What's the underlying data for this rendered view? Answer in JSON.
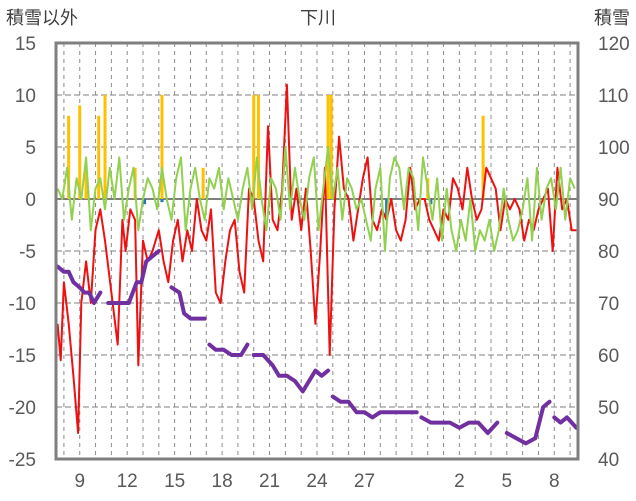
{
  "chart_data": {
    "type": "line",
    "title": "下川",
    "ylabel_left": "積雪以外",
    "ylabel_right": "積雪",
    "left_ylim": [
      -25,
      15
    ],
    "left_yticks": [
      "15",
      "10",
      "5",
      "0",
      "-5",
      "-10",
      "-15",
      "-20",
      "-25"
    ],
    "right_ylim": [
      40,
      120
    ],
    "right_yticks": [
      "120",
      "110",
      "100",
      "90",
      "80",
      "70",
      "60",
      "50",
      "40"
    ],
    "x_ticks": [
      "9",
      "12",
      "15",
      "18",
      "21",
      "24",
      "27",
      "2",
      "5",
      "8"
    ],
    "x_tick_days": [
      9,
      12,
      15,
      18,
      21,
      24,
      27,
      33,
      36,
      39
    ],
    "xlim_days": [
      7.5,
      40.5
    ],
    "grid": true,
    "colors": {
      "temperature": "#ee1111",
      "temp_variation": "#92d050",
      "precip": "#ffc000",
      "precip_negative": "#2e75b6",
      "snow_depth": "#7030a0",
      "frame": "#7f7f7f"
    },
    "series": [
      {
        "axis": "left",
        "kind": "line",
        "color_key": "temperature",
        "x": [
          7.6,
          7.8,
          8.0,
          8.3,
          8.6,
          8.9,
          9.1,
          9.4,
          9.7,
          10.0,
          10.3,
          10.6,
          11.0,
          11.4,
          11.7,
          11.9,
          12.2,
          12.5,
          12.7,
          13.0,
          13.3,
          13.6,
          14.0,
          14.3,
          14.6,
          14.9,
          15.2,
          15.5,
          15.8,
          16.1,
          16.4,
          16.7,
          17.0,
          17.3,
          17.6,
          17.9,
          18.2,
          18.5,
          18.8,
          19.1,
          19.4,
          19.7,
          20.0,
          20.3,
          20.6,
          20.9,
          21.2,
          21.5,
          21.8,
          22.1,
          22.4,
          22.7,
          23.0,
          23.3,
          23.6,
          23.9,
          24.2,
          24.5,
          24.8,
          25.1,
          25.4,
          25.7,
          26.0,
          26.3,
          26.6,
          26.9,
          27.2,
          27.5,
          27.8,
          28.1,
          28.4,
          28.7,
          29.0,
          29.3,
          29.6,
          29.9,
          30.2,
          30.5,
          30.8,
          31.1,
          31.4,
          31.7,
          32.0,
          32.3,
          32.6,
          32.9,
          33.2,
          33.5,
          33.8,
          34.1,
          34.4,
          34.7,
          35.0,
          35.3,
          35.6,
          35.9,
          36.2,
          36.5,
          36.8,
          37.1,
          37.4,
          37.7,
          38.0,
          38.3,
          38.6,
          38.9,
          39.2,
          39.5,
          39.8,
          40.1,
          40.4
        ],
        "y": [
          -12,
          -15.5,
          -8,
          -12,
          -17,
          -22.5,
          -10,
          -6,
          -10,
          -3,
          -1,
          -4,
          -9,
          -14,
          -2,
          -5,
          -1,
          -2,
          -16,
          -4,
          -6,
          -5,
          -3,
          -6,
          -8,
          -4,
          -2,
          -6,
          -3,
          -5,
          0,
          -3,
          -4,
          -1,
          -9,
          -10,
          -6,
          -3,
          -2,
          -7,
          -9,
          1,
          0,
          -4,
          -6,
          7,
          -2,
          -3,
          1,
          11,
          -2,
          1,
          -3,
          1,
          -5,
          -12,
          -5,
          3,
          -15,
          -1,
          6,
          1,
          0,
          -4,
          -1,
          2,
          4,
          -2,
          -3,
          -1,
          -2,
          0,
          -3,
          -4,
          -2,
          3,
          -1,
          0,
          0,
          -2,
          -3,
          -4,
          -1,
          -2,
          2,
          1,
          -1,
          3,
          0,
          -2,
          -1,
          3,
          2,
          1,
          -3,
          0,
          -1,
          0,
          -1,
          -4,
          -2,
          -3,
          -1,
          0,
          1,
          -5,
          3,
          -1,
          0,
          -3,
          -3
        ]
      },
      {
        "axis": "left",
        "kind": "line",
        "color_key": "temp_variation",
        "x": [
          7.6,
          7.9,
          8.2,
          8.5,
          8.8,
          9.1,
          9.4,
          9.7,
          10.0,
          10.3,
          10.6,
          10.9,
          11.2,
          11.5,
          11.8,
          12.1,
          12.4,
          12.7,
          13.0,
          13.3,
          13.6,
          13.9,
          14.2,
          14.5,
          14.8,
          15.1,
          15.4,
          15.7,
          16.0,
          16.3,
          16.6,
          16.9,
          17.2,
          17.5,
          17.8,
          18.1,
          18.4,
          18.7,
          19.0,
          19.3,
          19.6,
          19.9,
          20.2,
          20.5,
          20.8,
          21.1,
          21.4,
          21.7,
          22.0,
          22.3,
          22.6,
          22.9,
          23.2,
          23.5,
          23.8,
          24.1,
          24.4,
          24.7,
          25.0,
          25.3,
          25.6,
          25.9,
          26.2,
          26.5,
          26.8,
          27.1,
          27.4,
          27.7,
          28.0,
          28.3,
          28.6,
          28.9,
          29.2,
          29.5,
          29.8,
          30.1,
          30.4,
          30.7,
          31.0,
          31.3,
          31.6,
          31.9,
          32.2,
          32.5,
          32.8,
          33.1,
          33.4,
          33.7,
          34.0,
          34.3,
          34.6,
          34.9,
          35.2,
          35.5,
          35.8,
          36.1,
          36.4,
          36.7,
          37.0,
          37.3,
          37.6,
          37.9,
          38.2,
          38.5,
          38.8,
          39.1,
          39.4,
          39.7,
          40.0,
          40.3
        ],
        "y": [
          1,
          0,
          3,
          -2,
          2,
          0,
          4,
          -3,
          1,
          2,
          -1,
          3,
          0,
          4,
          -2,
          1,
          3,
          -3,
          0,
          2,
          1,
          -1,
          3,
          0,
          -2,
          2,
          4,
          -3,
          1,
          3,
          0,
          -2,
          2,
          1,
          3,
          -1,
          2,
          0,
          -2,
          1,
          3,
          -1,
          4,
          0,
          -3,
          2,
          1,
          -2,
          5,
          -1,
          3,
          0,
          -2,
          2,
          4,
          -3,
          1,
          5,
          0,
          3,
          -2,
          2,
          1,
          -1,
          0,
          -2,
          -4,
          1,
          3,
          -5,
          2,
          4,
          3,
          -1,
          3,
          2,
          -3,
          4,
          1,
          -2,
          2,
          -4,
          1,
          -3,
          -5,
          -2,
          -4,
          0,
          -5,
          -3,
          -4,
          -2,
          -5,
          -3,
          1,
          -2,
          -4,
          -3,
          -1,
          2,
          -4,
          3,
          -2,
          1,
          2,
          -1,
          3,
          -2,
          2,
          1
        ]
      },
      {
        "axis": "left",
        "kind": "bar",
        "color_key": "precip",
        "x": [
          8.3,
          9.0,
          9.4,
          10.2,
          10.6,
          12.5,
          14.2,
          16.8,
          20.0,
          20.3,
          24.7,
          24.9,
          31.0,
          34.5
        ],
        "y": [
          8,
          9,
          3,
          8,
          10,
          3,
          10,
          3,
          10,
          10,
          10,
          10,
          2,
          8
        ]
      },
      {
        "axis": "left",
        "kind": "bar",
        "color_key": "precip_negative",
        "x": [
          13.1,
          14.2,
          22.9,
          28.4,
          31.2
        ],
        "y": [
          -0.5,
          -0.3,
          -0.4,
          -2.0,
          -0.5
        ]
      },
      {
        "axis": "right",
        "kind": "line",
        "color_key": "snow_depth",
        "segments": [
          {
            "x": [
              7.6,
              8.0,
              8.3,
              8.6,
              9.0,
              9.3,
              9.6,
              9.9,
              10.3
            ],
            "y": [
              77,
              76,
              76,
              74,
              73,
              72,
              72,
              70,
              72
            ]
          },
          {
            "x": [
              10.8,
              11.2,
              11.6,
              12.1,
              12.6,
              12.9,
              13.2,
              13.6,
              14.0
            ],
            "y": [
              70,
              70,
              70,
              70,
              74,
              74,
              78,
              79,
              80
            ]
          },
          {
            "x": [
              14.8,
              15.3,
              15.6,
              16.0,
              16.4,
              16.9
            ],
            "y": [
              73,
              72,
              68,
              67,
              67,
              67
            ]
          },
          {
            "x": [
              17.2,
              17.6,
              18.1,
              18.6,
              19.2,
              19.6
            ],
            "y": [
              62,
              61,
              61,
              60,
              60,
              62
            ]
          },
          {
            "x": [
              20.0,
              20.6,
              21.2,
              21.6,
              22.1,
              22.6,
              23.1,
              23.5,
              23.9,
              24.3,
              24.7
            ],
            "y": [
              60,
              60,
              58,
              56,
              56,
              55,
              53,
              55,
              57,
              56,
              57
            ]
          },
          {
            "x": [
              25.0,
              25.5,
              26.0,
              26.5,
              27.0,
              27.5,
              28.0,
              28.6,
              29.2,
              29.8,
              30.3
            ],
            "y": [
              52,
              51,
              51,
              49,
              49,
              48,
              49,
              49,
              49,
              49,
              49
            ]
          },
          {
            "x": [
              30.6,
              31.2,
              31.8,
              32.4,
              33.0,
              33.6,
              34.2,
              34.8,
              35.4
            ],
            "y": [
              48,
              47,
              47,
              47,
              46,
              47,
              47,
              45,
              47
            ]
          },
          {
            "x": [
              36.0,
              36.6,
              37.2,
              37.8,
              38.3,
              38.7
            ],
            "y": [
              45,
              44,
              43,
              44,
              50,
              51
            ]
          },
          {
            "x": [
              39.0,
              39.4,
              39.8,
              40.1,
              40.4
            ],
            "y": [
              48,
              47,
              48,
              47,
              46
            ]
          }
        ]
      }
    ]
  }
}
